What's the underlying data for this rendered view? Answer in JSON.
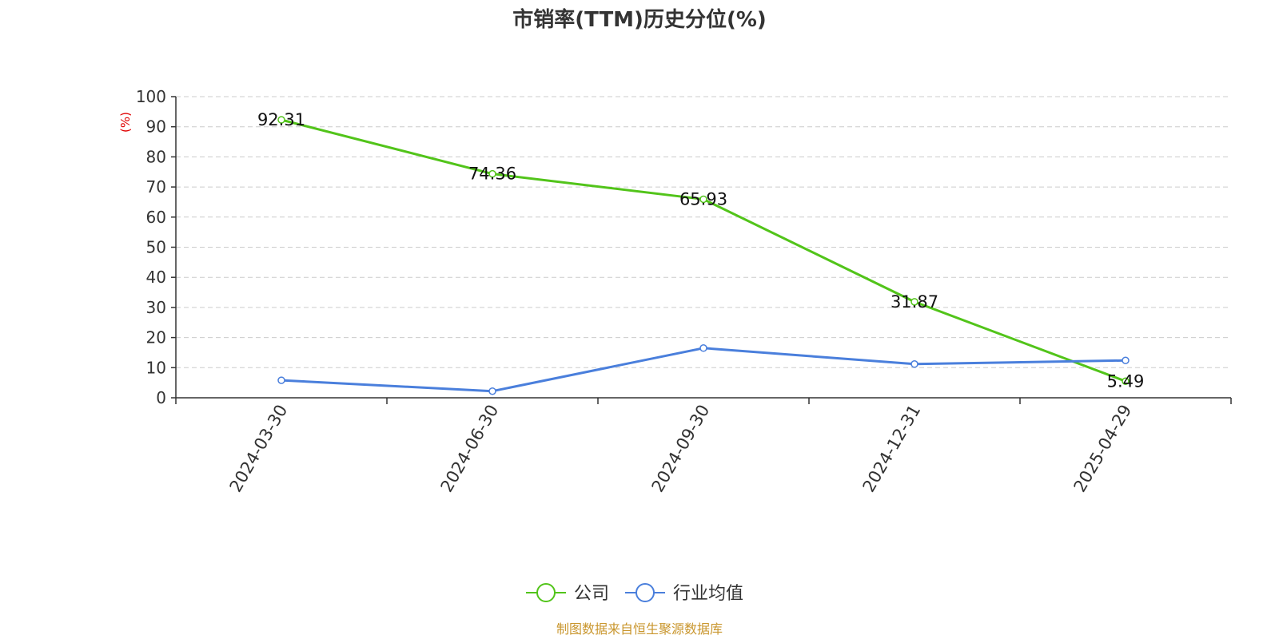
{
  "chart_data": {
    "type": "line",
    "title": "市销率(TTM)历史分位(%)",
    "ylabel": "(%)",
    "xlabel": "",
    "categories": [
      "2024-03-30",
      "2024-06-30",
      "2024-09-30",
      "2024-12-31",
      "2025-04-29"
    ],
    "ylim": [
      0,
      100
    ],
    "yticks": [
      0,
      10,
      20,
      30,
      40,
      50,
      60,
      70,
      80,
      90,
      100
    ],
    "grid": true,
    "legend_position": "bottom-center",
    "series": [
      {
        "name": "公司",
        "color": "#52c41a",
        "values": [
          92.31,
          74.36,
          65.93,
          31.87,
          5.49
        ],
        "show_labels": true
      },
      {
        "name": "行业均值",
        "color": "#4a7fdc",
        "values": [
          5.8,
          2.2,
          16.5,
          11.2,
          12.4
        ],
        "show_labels": false
      }
    ]
  },
  "source": "制图数据来自恒生聚源数据库"
}
